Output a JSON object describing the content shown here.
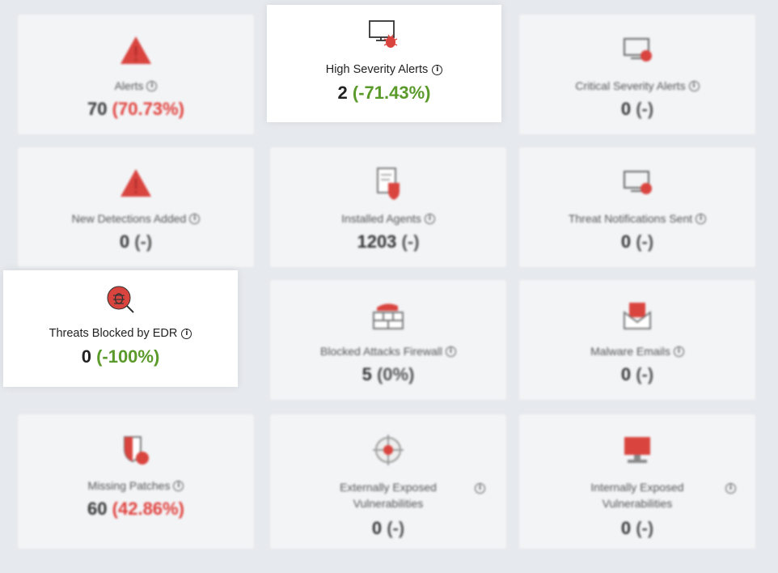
{
  "cards": [
    {
      "label": "Alerts",
      "count": "70",
      "change": "(70.73%)",
      "change_color": "#e0403c",
      "icon": "warning-triangle-icon"
    },
    {
      "label": "High Severity Alerts",
      "count": "2",
      "change": "(-71.43%)",
      "change_color": "#5a9a2a",
      "icon": "monitor-bug-icon"
    },
    {
      "label": "Critical Severity Alerts",
      "count": "0",
      "change": "(-)",
      "icon": "monitor-alert-icon"
    },
    {
      "label": "New Detections Added",
      "count": "0",
      "change": "(-)",
      "icon": "warning-triangle-icon"
    },
    {
      "label": "Installed Agents",
      "count": "1203",
      "change": "(-)",
      "icon": "document-shield-icon"
    },
    {
      "label": "Threat Notifications Sent",
      "count": "0",
      "change": "(-)",
      "icon": "monitor-alert-icon"
    },
    {
      "label": "Threats Blocked by EDR",
      "count": "0",
      "change": "(-100%)",
      "change_color": "#5a9a2a",
      "icon": "bug-search-icon"
    },
    {
      "label": "Blocked Attacks Firewall",
      "count": "5",
      "change": "(0%)",
      "icon": "firewall-icon"
    },
    {
      "label": "Malware Emails",
      "count": "0",
      "change": "(-)",
      "icon": "mail-icon"
    },
    {
      "label": "Missing Patches",
      "count": "60",
      "change": "(42.86%)",
      "change_color": "#e0403c",
      "icon": "shield-badge-icon"
    },
    {
      "label_line1": "Externally Exposed",
      "label_line2": "Vulnerabilities",
      "count": "0",
      "change": "(-)",
      "icon": "target-icon"
    },
    {
      "label_line1": "Internally Exposed",
      "label_line2": "Vulnerabilities",
      "count": "0",
      "change": "(-)",
      "icon": "desktop-icon"
    }
  ],
  "info_glyph": "i",
  "accent_red": "#d9443f"
}
